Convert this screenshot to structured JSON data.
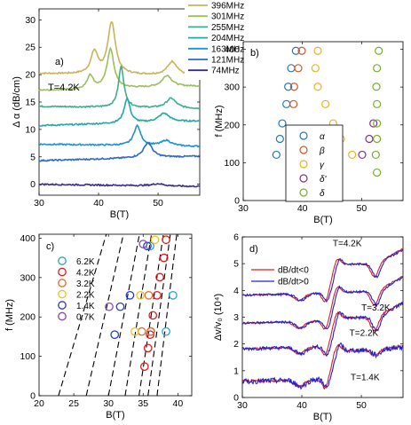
{
  "chart_data": [
    {
      "id": "a",
      "type": "line",
      "panel_label": "a)",
      "annotation": "T=4.2K",
      "xlabel": "B(T)",
      "ylabel": "Δ α (dB/cm)",
      "xlim": [
        30,
        57
      ],
      "ylim": [
        -2,
        32
      ],
      "xticks": [
        30,
        40,
        50
      ],
      "yticks": [
        0,
        5,
        10,
        15,
        20,
        25,
        30
      ],
      "series": [
        {
          "name": "396MHz",
          "color": "#c9b45a",
          "baseline": 20.2,
          "peaks": [
            [
              39.3,
              4.0,
              0.7
            ],
            [
              42.2,
              9.5,
              0.75
            ],
            [
              52.4,
              2.5,
              1.0
            ]
          ]
        },
        {
          "name": "301MHz",
          "color": "#9cbf5e",
          "baseline": 17.1,
          "peaks": [
            [
              38.6,
              2.5,
              0.6
            ],
            [
              42.0,
              7.2,
              0.7
            ],
            [
              51.5,
              2.1,
              1.0
            ]
          ]
        },
        {
          "name": "255MHz",
          "color": "#3fae8c",
          "baseline": 14.2,
          "peaks": [
            [
              43.8,
              7.5,
              0.55
            ],
            [
              52.2,
              1.8,
              1.0
            ]
          ]
        },
        {
          "name": "204MHz",
          "color": "#22a7a7",
          "baseline": 10.7,
          "peaks": [
            [
              44.8,
              4.5,
              0.6
            ],
            [
              51.0,
              1.6,
              1.1
            ]
          ]
        },
        {
          "name": "163MHz",
          "color": "#1e93c8",
          "baseline": 7.3,
          "peaks": [
            [
              46.5,
              3.6,
              0.7
            ],
            [
              51.4,
              1.0,
              1.0
            ]
          ]
        },
        {
          "name": "121MHz",
          "color": "#2b6ac9",
          "baseline": 4.3,
          "peaks": [
            [
              48.3,
              2.7,
              0.9
            ]
          ]
        },
        {
          "name": "74MHz",
          "color": "#3a2a8c",
          "baseline": 0.0,
          "peaks": [
            [
              50.0,
              0.4,
              1.2
            ]
          ]
        }
      ]
    },
    {
      "id": "b",
      "type": "scatter",
      "panel_label": "b)",
      "xlabel": "B(T)",
      "ylabel": "f (MHz)",
      "xlim": [
        30,
        57
      ],
      "ylim": [
        0,
        420
      ],
      "xticks": [
        30,
        40,
        50
      ],
      "yticks": [
        0,
        100,
        200,
        300,
        400
      ],
      "series": [
        {
          "name": "α",
          "color": "#1f77c4",
          "points": [
            [
              38.9,
              396
            ],
            [
              38.1,
              350
            ],
            [
              37.6,
              301
            ],
            [
              37.3,
              255
            ],
            [
              36.6,
              204
            ],
            [
              36.2,
              163
            ],
            [
              35.6,
              121
            ]
          ]
        },
        {
          "name": "β",
          "color": "#d9541a",
          "points": [
            [
              39.9,
              396
            ],
            [
              39.3,
              350
            ],
            [
              38.6,
              301
            ],
            [
              38.5,
              255
            ]
          ]
        },
        {
          "name": "γ",
          "color": "#edb120",
          "points": [
            [
              42.6,
              396
            ],
            [
              42.2,
              350
            ],
            [
              42.6,
              301
            ],
            [
              43.9,
              255
            ],
            [
              45.2,
              204
            ],
            [
              46.5,
              163
            ],
            [
              48.4,
              121
            ]
          ]
        },
        {
          "name": "δ'",
          "color": "#7e2f8e",
          "points": [
            [
              52.0,
              204
            ],
            [
              51.3,
              163
            ],
            [
              50.1,
              121
            ]
          ]
        },
        {
          "name": "δ",
          "color": "#77ac30",
          "points": [
            [
              52.9,
              396
            ],
            [
              52.6,
              350
            ],
            [
              52.5,
              301
            ],
            [
              52.6,
              255
            ],
            [
              52.6,
              204
            ],
            [
              52.6,
              163
            ],
            [
              52.4,
              121
            ],
            [
              52.6,
              74
            ]
          ]
        }
      ]
    },
    {
      "id": "c",
      "type": "scatter",
      "panel_label": "c)",
      "xlabel": "B(T)",
      "ylabel": "f (MHz)",
      "xlim": [
        20,
        42
      ],
      "ylim": [
        0,
        410
      ],
      "xticks": [
        20,
        25,
        30,
        35,
        40
      ],
      "yticks": [
        0,
        100,
        200,
        300,
        400
      ],
      "series": [
        {
          "name": "6.2K",
          "color": "#2a9fd6",
          "points": [
            [
              39.3,
              255
            ],
            [
              38.3,
              163
            ],
            [
              36.0,
              380
            ]
          ]
        },
        {
          "name": "4.2K",
          "color": "#e41a1c",
          "points": [
            [
              38.3,
              396
            ],
            [
              38.0,
              350
            ],
            [
              37.4,
              301
            ],
            [
              37.0,
              255
            ],
            [
              36.4,
              204
            ],
            [
              36.1,
              163
            ],
            [
              35.7,
              121
            ],
            [
              35.2,
              74
            ],
            [
              36.0,
              155
            ]
          ]
        },
        {
          "name": "3.2K",
          "color": "#e86a2a",
          "points": [
            [
              35.8,
              255
            ],
            [
              34.8,
              163
            ],
            [
              36.1,
              163
            ]
          ]
        },
        {
          "name": "2.2K",
          "color": "#f0c020",
          "points": [
            [
              36.7,
              396
            ],
            [
              34.6,
              255
            ],
            [
              33.8,
              163
            ]
          ]
        },
        {
          "name": "1.4K",
          "color": "#1f3bd6",
          "points": [
            [
              35.6,
              380
            ],
            [
              33.1,
              255
            ],
            [
              31.7,
              226
            ],
            [
              30.9,
              155
            ]
          ]
        },
        {
          "name": "0.7K",
          "color": "#8e44ad",
          "points": [
            [
              35.0,
              385
            ],
            [
              30.1,
              226
            ]
          ]
        }
      ],
      "guide_lines": [
        [
          22.8,
          7.0
        ],
        [
          26.8,
          9.0
        ],
        [
          30.0,
          10.8
        ],
        [
          32.4,
          12.7
        ],
        [
          34.4,
          13.7
        ],
        [
          35.7,
          15.0
        ],
        [
          37.0,
          17.0
        ]
      ]
    },
    {
      "id": "d",
      "type": "line",
      "panel_label": "d)",
      "xlabel": "B(T)",
      "ylabel": "Δv/v₀ (10⁴)",
      "xlim": [
        30,
        57
      ],
      "ylim": [
        0,
        6
      ],
      "xticks": [
        30,
        40,
        50
      ],
      "yticks": [
        0,
        1,
        2,
        3,
        4,
        5,
        6
      ],
      "series": [
        {
          "name": "dB/dt<0",
          "color": "#e41a1c"
        },
        {
          "name": "dB/dt>0",
          "color": "#2020d0"
        }
      ],
      "traces": [
        {
          "label": "T=4.2K",
          "baseline": 3.82,
          "label_at": [
            45.2,
            5.65
          ]
        },
        {
          "label": "T=3.2K",
          "baseline": 2.78,
          "label_at": [
            50.0,
            3.25
          ]
        },
        {
          "label": "T=2.2K",
          "baseline": 1.82,
          "label_at": [
            48.0,
            2.3
          ]
        },
        {
          "label": "T=1.4K",
          "baseline": 0.6,
          "label_at": [
            48.2,
            0.65
          ]
        }
      ]
    }
  ]
}
